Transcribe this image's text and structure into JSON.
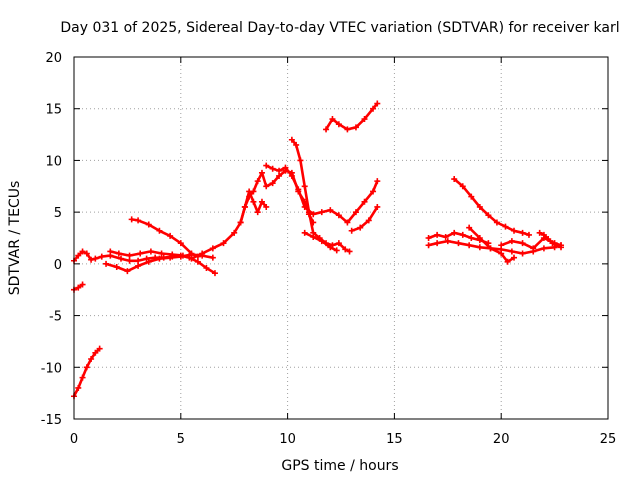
{
  "chart_data": {
    "type": "scatter",
    "title": "Day 031 of 2025, Sidereal Day-to-day VTEC variation (SDTVAR) for receiver karl",
    "xlabel": "GPS time / hours",
    "ylabel": "SDTVAR / TECUs",
    "xlim": [
      0,
      25
    ],
    "ylim": [
      -15,
      20
    ],
    "x_ticks": [
      0,
      5,
      10,
      15,
      20,
      25
    ],
    "y_ticks": [
      -15,
      -10,
      -5,
      0,
      5,
      10,
      15,
      20
    ],
    "grid": true,
    "marker": "+",
    "color": "#ff0000",
    "series": [
      {
        "name": "satellite-track-01",
        "x": [
          0.0,
          0.2,
          0.4,
          0.6,
          0.8,
          1.0,
          1.2
        ],
        "y": [
          -12.8,
          -12.0,
          -11.0,
          -10.0,
          -9.2,
          -8.6,
          -8.2
        ]
      },
      {
        "name": "satellite-track-02",
        "x": [
          0.0,
          0.2,
          0.4
        ],
        "y": [
          -2.5,
          -2.3,
          -2.0
        ]
      },
      {
        "name": "satellite-track-03",
        "x": [
          0.0,
          0.2,
          0.4,
          0.6,
          0.8,
          1.0,
          1.3,
          1.7,
          2.2,
          2.6,
          3.0,
          3.4,
          3.8,
          4.2,
          4.6,
          5.0,
          5.4,
          5.8,
          6.2,
          6.6
        ],
        "y": [
          0.3,
          0.8,
          1.2,
          1.0,
          0.4,
          0.5,
          0.7,
          0.8,
          0.5,
          0.3,
          0.3,
          0.5,
          0.6,
          0.6,
          0.7,
          0.8,
          0.6,
          0.2,
          -0.4,
          -0.9
        ]
      },
      {
        "name": "satellite-track-04",
        "x": [
          1.5,
          2.0,
          2.5,
          3.0,
          3.5,
          4.0,
          4.5,
          5.0,
          5.5,
          6.0,
          6.5
        ],
        "y": [
          0.0,
          -0.3,
          -0.7,
          -0.2,
          0.2,
          0.5,
          0.6,
          0.7,
          0.9,
          0.8,
          0.6
        ]
      },
      {
        "name": "satellite-track-05",
        "x": [
          1.7,
          2.1,
          2.6,
          3.1,
          3.6,
          4.1,
          4.6,
          5.1
        ],
        "y": [
          1.2,
          1.0,
          0.8,
          1.0,
          1.2,
          1.0,
          0.9,
          0.8
        ]
      },
      {
        "name": "satellite-track-06",
        "x": [
          2.7,
          3.0,
          3.5,
          4.0,
          4.5,
          5.0,
          5.5,
          5.8
        ],
        "y": [
          4.3,
          4.2,
          3.8,
          3.2,
          2.7,
          2.0,
          1.0,
          0.7
        ]
      },
      {
        "name": "satellite-track-07",
        "x": [
          5.5,
          6.0,
          6.5,
          7.0,
          7.5,
          7.8,
          8.0,
          8.2,
          8.4,
          8.6,
          8.8,
          9.0,
          9.3,
          9.6,
          9.9,
          10.2,
          10.5,
          10.8,
          11.0,
          11.2
        ],
        "y": [
          0.5,
          1.0,
          1.5,
          2.0,
          3.0,
          4.0,
          5.5,
          6.5,
          7.0,
          8.0,
          8.8,
          7.5,
          7.8,
          8.5,
          9.0,
          8.8,
          7.0,
          6.0,
          4.8,
          4.0
        ]
      },
      {
        "name": "satellite-track-08",
        "x": [
          7.8,
          8.0,
          8.2,
          8.4,
          8.6,
          8.8,
          9.0
        ],
        "y": [
          4.0,
          5.5,
          7.0,
          6.0,
          5.0,
          6.0,
          5.5
        ]
      },
      {
        "name": "satellite-track-09",
        "x": [
          9.0,
          9.3,
          9.6,
          9.9,
          10.2,
          10.5,
          10.8,
          11.2,
          11.6,
          12.0,
          12.4,
          12.8,
          13.2,
          13.6,
          14.0,
          14.2
        ],
        "y": [
          9.5,
          9.2,
          9.0,
          9.3,
          8.5,
          7.2,
          5.5,
          4.8,
          5.0,
          5.2,
          4.7,
          4.0,
          5.0,
          6.0,
          7.0,
          8.0
        ]
      },
      {
        "name": "satellite-track-10",
        "x": [
          10.2,
          10.4,
          10.6,
          10.8,
          11.0,
          11.2,
          11.5,
          11.8,
          12.1,
          12.4,
          12.7,
          12.9
        ],
        "y": [
          12.0,
          11.5,
          10.0,
          7.5,
          5.0,
          3.0,
          2.5,
          2.0,
          1.8,
          2.0,
          1.4,
          1.2
        ]
      },
      {
        "name": "satellite-track-11",
        "x": [
          10.8,
          11.2,
          11.6,
          12.0,
          12.3
        ],
        "y": [
          3.0,
          2.6,
          2.2,
          1.6,
          1.3
        ]
      },
      {
        "name": "satellite-track-12",
        "x": [
          11.8,
          12.1,
          12.4,
          12.8,
          13.2,
          13.6,
          14.0,
          14.2
        ],
        "y": [
          13.0,
          14.0,
          13.5,
          13.0,
          13.2,
          14.0,
          15.0,
          15.5
        ]
      },
      {
        "name": "satellite-track-13",
        "x": [
          13.0,
          13.4,
          13.8,
          14.2
        ],
        "y": [
          3.2,
          3.5,
          4.2,
          5.5
        ]
      },
      {
        "name": "satellite-track-14",
        "x": [
          16.6,
          17.0,
          17.4,
          17.8,
          18.2,
          18.6,
          19.0,
          19.4
        ],
        "y": [
          2.5,
          2.8,
          2.6,
          3.0,
          2.8,
          2.5,
          2.3,
          2.0
        ]
      },
      {
        "name": "satellite-track-15",
        "x": [
          16.6,
          17.0,
          17.5,
          18.0,
          18.5,
          19.0,
          19.5,
          20.0,
          20.5,
          21.0,
          21.5,
          22.0,
          22.5,
          22.8
        ],
        "y": [
          1.8,
          2.0,
          2.2,
          2.0,
          1.8,
          1.6,
          1.5,
          1.4,
          1.2,
          1.0,
          1.2,
          1.5,
          1.6,
          1.8
        ]
      },
      {
        "name": "satellite-track-16",
        "x": [
          17.8,
          18.2,
          18.6,
          19.0,
          19.4,
          19.8,
          20.2,
          20.6,
          21.0,
          21.3
        ],
        "y": [
          8.2,
          7.5,
          6.5,
          5.5,
          4.7,
          4.0,
          3.6,
          3.2,
          3.0,
          2.8
        ]
      },
      {
        "name": "satellite-track-17",
        "x": [
          18.5,
          19.0,
          19.5,
          20.0,
          20.3,
          20.6
        ],
        "y": [
          3.5,
          2.5,
          1.5,
          1.0,
          0.2,
          0.6
        ]
      },
      {
        "name": "satellite-track-18",
        "x": [
          20.0,
          20.5,
          21.0,
          21.5,
          22.0,
          22.5,
          22.8
        ],
        "y": [
          1.8,
          2.2,
          2.0,
          1.5,
          2.5,
          2.0,
          1.8
        ]
      },
      {
        "name": "satellite-track-19",
        "x": [
          21.8,
          22.0,
          22.2,
          22.4,
          22.6,
          22.8
        ],
        "y": [
          3.0,
          2.8,
          2.4,
          2.0,
          1.8,
          1.6
        ]
      }
    ]
  }
}
